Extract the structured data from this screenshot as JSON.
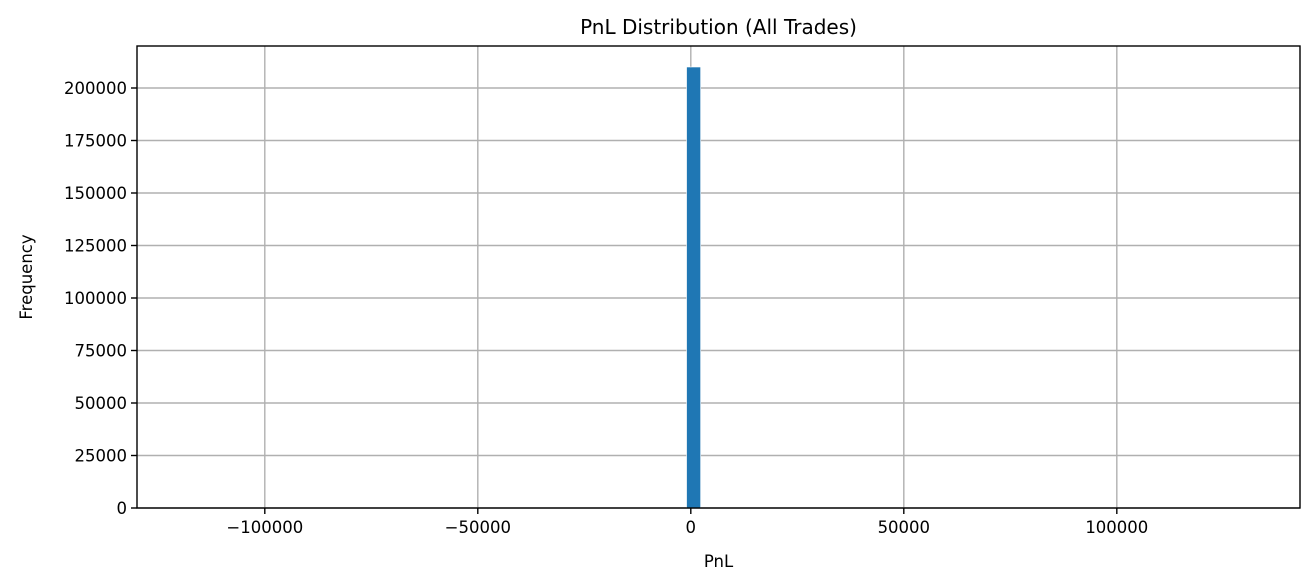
{
  "chart_data": {
    "type": "bar",
    "title": "PnL Distribution (All Trades)",
    "xlabel": "PnL",
    "ylabel": "Frequency",
    "xlim": [
      -130000,
      143000
    ],
    "ylim": [
      0,
      220000
    ],
    "xticks": [
      -100000,
      -50000,
      0,
      50000,
      100000
    ],
    "xtick_labels": [
      "−100000",
      "−50000",
      "0",
      "50000",
      "100000"
    ],
    "yticks": [
      0,
      25000,
      50000,
      75000,
      100000,
      125000,
      150000,
      175000,
      200000
    ],
    "ytick_labels": [
      "0",
      "25000",
      "50000",
      "75000",
      "100000",
      "125000",
      "150000",
      "175000",
      "200000"
    ],
    "grid": true,
    "bar_color": "#1f77b4",
    "bins": [
      {
        "x0": -1000,
        "x1": 2300,
        "count": 210000
      }
    ]
  }
}
